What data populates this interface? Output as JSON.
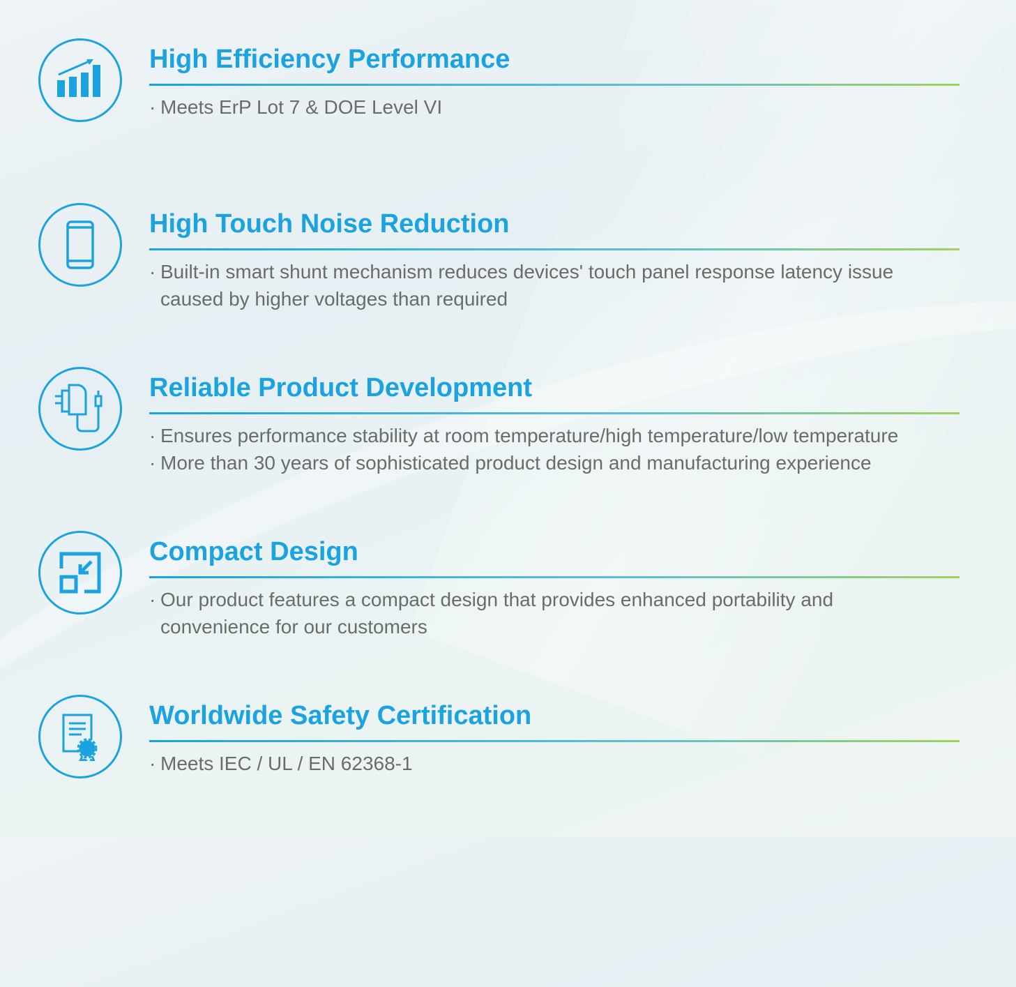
{
  "colors": {
    "accent": "#1aa3e0",
    "text": "#6b6b6b",
    "rule_end": "#9fd25a"
  },
  "features": [
    {
      "icon": "bar-chart-growth-icon",
      "title": "High Efficiency Performance",
      "bullets": [
        "Meets ErP Lot 7 & DOE Level VI"
      ]
    },
    {
      "icon": "smartphone-icon",
      "title": "High Touch Noise Reduction",
      "bullets": [
        "Built-in smart shunt mechanism reduces devices' touch panel response latency issue",
        "caused by higher voltages than required"
      ]
    },
    {
      "icon": "power-adapter-icon",
      "title": "Reliable Product Development",
      "bullets": [
        "Ensures performance stability at room temperature/high temperature/low temperature",
        "More than 30 years of sophisticated product  design and manufacturing experience"
      ]
    },
    {
      "icon": "compact-resize-icon",
      "title": "Compact Design",
      "bullets": [
        "Our product features a compact design that provides enhanced portability and",
        "convenience for our customers"
      ]
    },
    {
      "icon": "certificate-icon",
      "title": "Worldwide Safety Certification",
      "bullets": [
        "Meets IEC / UL / EN 62368-1"
      ]
    }
  ]
}
